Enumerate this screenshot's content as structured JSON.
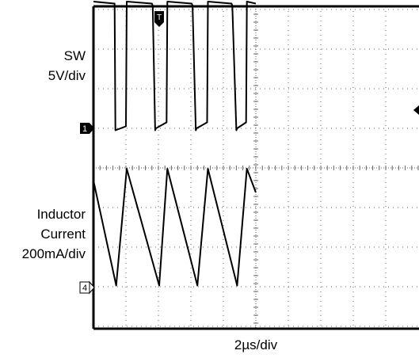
{
  "chart_data": [
    {
      "type": "line",
      "title": "",
      "timebase_label": "2µs/div",
      "time_per_div_us": 2,
      "x_divisions": 10,
      "series": [
        {
          "name": "SW",
          "label_lines": [
            "SW",
            "5V/div"
          ],
          "scale_label": "5V/div",
          "channel_marker": "1",
          "x_us": [
            0,
            1.3,
            1.35,
            2.0,
            2.05,
            3.6,
            3.65,
            3.8,
            3.85,
            4.5,
            4.55,
            6.05,
            6.1,
            6.3,
            6.35,
            7.0,
            7.05,
            8.5,
            8.55,
            8.8,
            8.85,
            9.4,
            9.45,
            10.0
          ],
          "y_div": [
            3.2,
            3.15,
            -0.05,
            0.05,
            3.2,
            3.15,
            3.1,
            -0.05,
            0.0,
            0.15,
            3.2,
            3.15,
            3.1,
            -0.05,
            0.0,
            0.15,
            3.2,
            3.15,
            3.1,
            -0.05,
            0.0,
            0.15,
            3.2,
            3.15
          ]
        },
        {
          "name": "Inductor Current",
          "label_lines": [
            "Inductor",
            "Current",
            "200mA/div"
          ],
          "scale_label": "200mA/div",
          "channel_marker": "4",
          "x_us": [
            0,
            1.4,
            2.05,
            4.05,
            4.55,
            6.4,
            7.05,
            8.85,
            9.45,
            10.0
          ],
          "y_div": [
            2.7,
            0.05,
            3.0,
            0.05,
            3.0,
            0.05,
            3.0,
            0.05,
            3.0,
            2.4
          ]
        }
      ],
      "trigger_marker": "T",
      "grid": true
    }
  ]
}
